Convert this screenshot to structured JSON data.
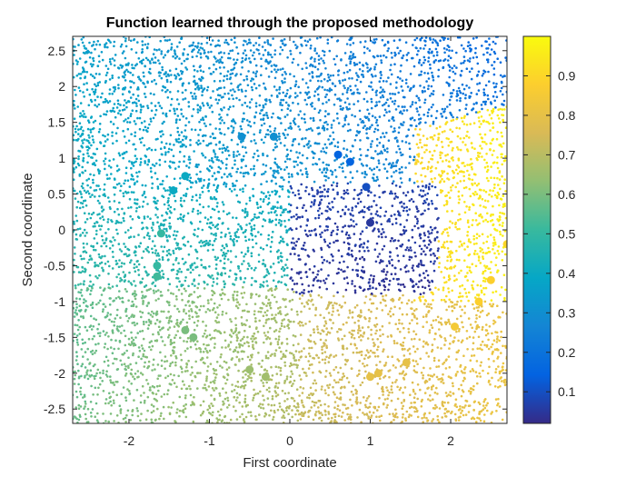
{
  "chart_data": {
    "type": "scatter",
    "title": "Function learned through the proposed methodology",
    "xlabel": "First coordinate",
    "ylabel": "Second coordinate",
    "xlim": [
      -2.7,
      2.7
    ],
    "ylim": [
      -2.7,
      2.7
    ],
    "xticks": [
      -2,
      -1,
      0,
      1,
      2
    ],
    "yticks": [
      -2.5,
      -2,
      -1.5,
      -1,
      -0.5,
      0,
      0.5,
      1,
      1.5,
      2,
      2.5
    ],
    "xtick_labels": [
      "-2",
      "-1",
      "0",
      "1",
      "2"
    ],
    "ytick_labels": [
      "-2.5",
      "-2",
      "-1.5",
      "-1",
      "-0.5",
      "0",
      "0.5",
      "1",
      "1.5",
      "2",
      "2.5"
    ],
    "colormap": "parula",
    "color_range": [
      0.02,
      1.0
    ],
    "colorbar_ticks": [
      0.1,
      0.2,
      0.3,
      0.4,
      0.5,
      0.6,
      0.7,
      0.8,
      0.9
    ],
    "colorbar_tick_labels": [
      "0.1",
      "0.2",
      "0.3",
      "0.4",
      "0.5",
      "0.6",
      "0.7",
      "0.8",
      "0.9"
    ],
    "grid": false,
    "box": true,
    "regions": [
      {
        "description": "dark blue low-value bowl",
        "x_range": [
          0,
          1.8
        ],
        "y_range": [
          -0.9,
          0.6
        ],
        "value": 0.08
      },
      {
        "description": "yellow high-value region",
        "x_range": [
          1.6,
          2.7
        ],
        "y_range": [
          -1.0,
          1.7
        ],
        "value": 0.92
      },
      {
        "description": "orange lower-right region",
        "x_range": [
          0.3,
          2.7
        ],
        "y_range": [
          -2.7,
          -0.9
        ],
        "value": 0.8
      },
      {
        "description": "green lower-left region",
        "x_range": [
          -2.7,
          0.3
        ],
        "y_range": [
          -2.7,
          -0.8
        ],
        "value": 0.6
      },
      {
        "description": "teal/cyan left region",
        "x_range": [
          -2.7,
          0
        ],
        "y_range": [
          -0.8,
          1.0
        ],
        "value": 0.45
      },
      {
        "description": "blue upper region",
        "x_range": [
          -2.7,
          2.7
        ],
        "y_range": [
          1.0,
          2.7
        ],
        "value": 0.3
      }
    ],
    "highlighted_points": [
      {
        "x": -1.3,
        "y": 0.75,
        "value": 0.4
      },
      {
        "x": -1.45,
        "y": 0.55,
        "value": 0.4
      },
      {
        "x": -0.6,
        "y": 1.3,
        "value": 0.3
      },
      {
        "x": -0.2,
        "y": 1.3,
        "value": 0.3
      },
      {
        "x": 0.6,
        "y": 1.05,
        "value": 0.15
      },
      {
        "x": 0.75,
        "y": 0.95,
        "value": 0.15
      },
      {
        "x": 1.0,
        "y": 0.1,
        "value": 0.05
      },
      {
        "x": 0.95,
        "y": 0.6,
        "value": 0.1
      },
      {
        "x": -1.65,
        "y": -0.5,
        "value": 0.5
      },
      {
        "x": -1.65,
        "y": -0.65,
        "value": 0.52
      },
      {
        "x": -1.6,
        "y": -0.05,
        "value": 0.5
      },
      {
        "x": -1.3,
        "y": -1.4,
        "value": 0.6
      },
      {
        "x": -1.2,
        "y": -1.5,
        "value": 0.6
      },
      {
        "x": -0.5,
        "y": -1.95,
        "value": 0.65
      },
      {
        "x": -0.3,
        "y": -2.05,
        "value": 0.66
      },
      {
        "x": 1.0,
        "y": -2.05,
        "value": 0.8
      },
      {
        "x": 1.1,
        "y": -2.0,
        "value": 0.8
      },
      {
        "x": 1.45,
        "y": -1.85,
        "value": 0.8
      },
      {
        "x": 2.05,
        "y": -1.35,
        "value": 0.85
      },
      {
        "x": 2.35,
        "y": -1.0,
        "value": 0.88
      },
      {
        "x": 2.7,
        "y": -0.2,
        "value": 0.9
      },
      {
        "x": 2.5,
        "y": -0.7,
        "value": 0.88
      }
    ]
  }
}
